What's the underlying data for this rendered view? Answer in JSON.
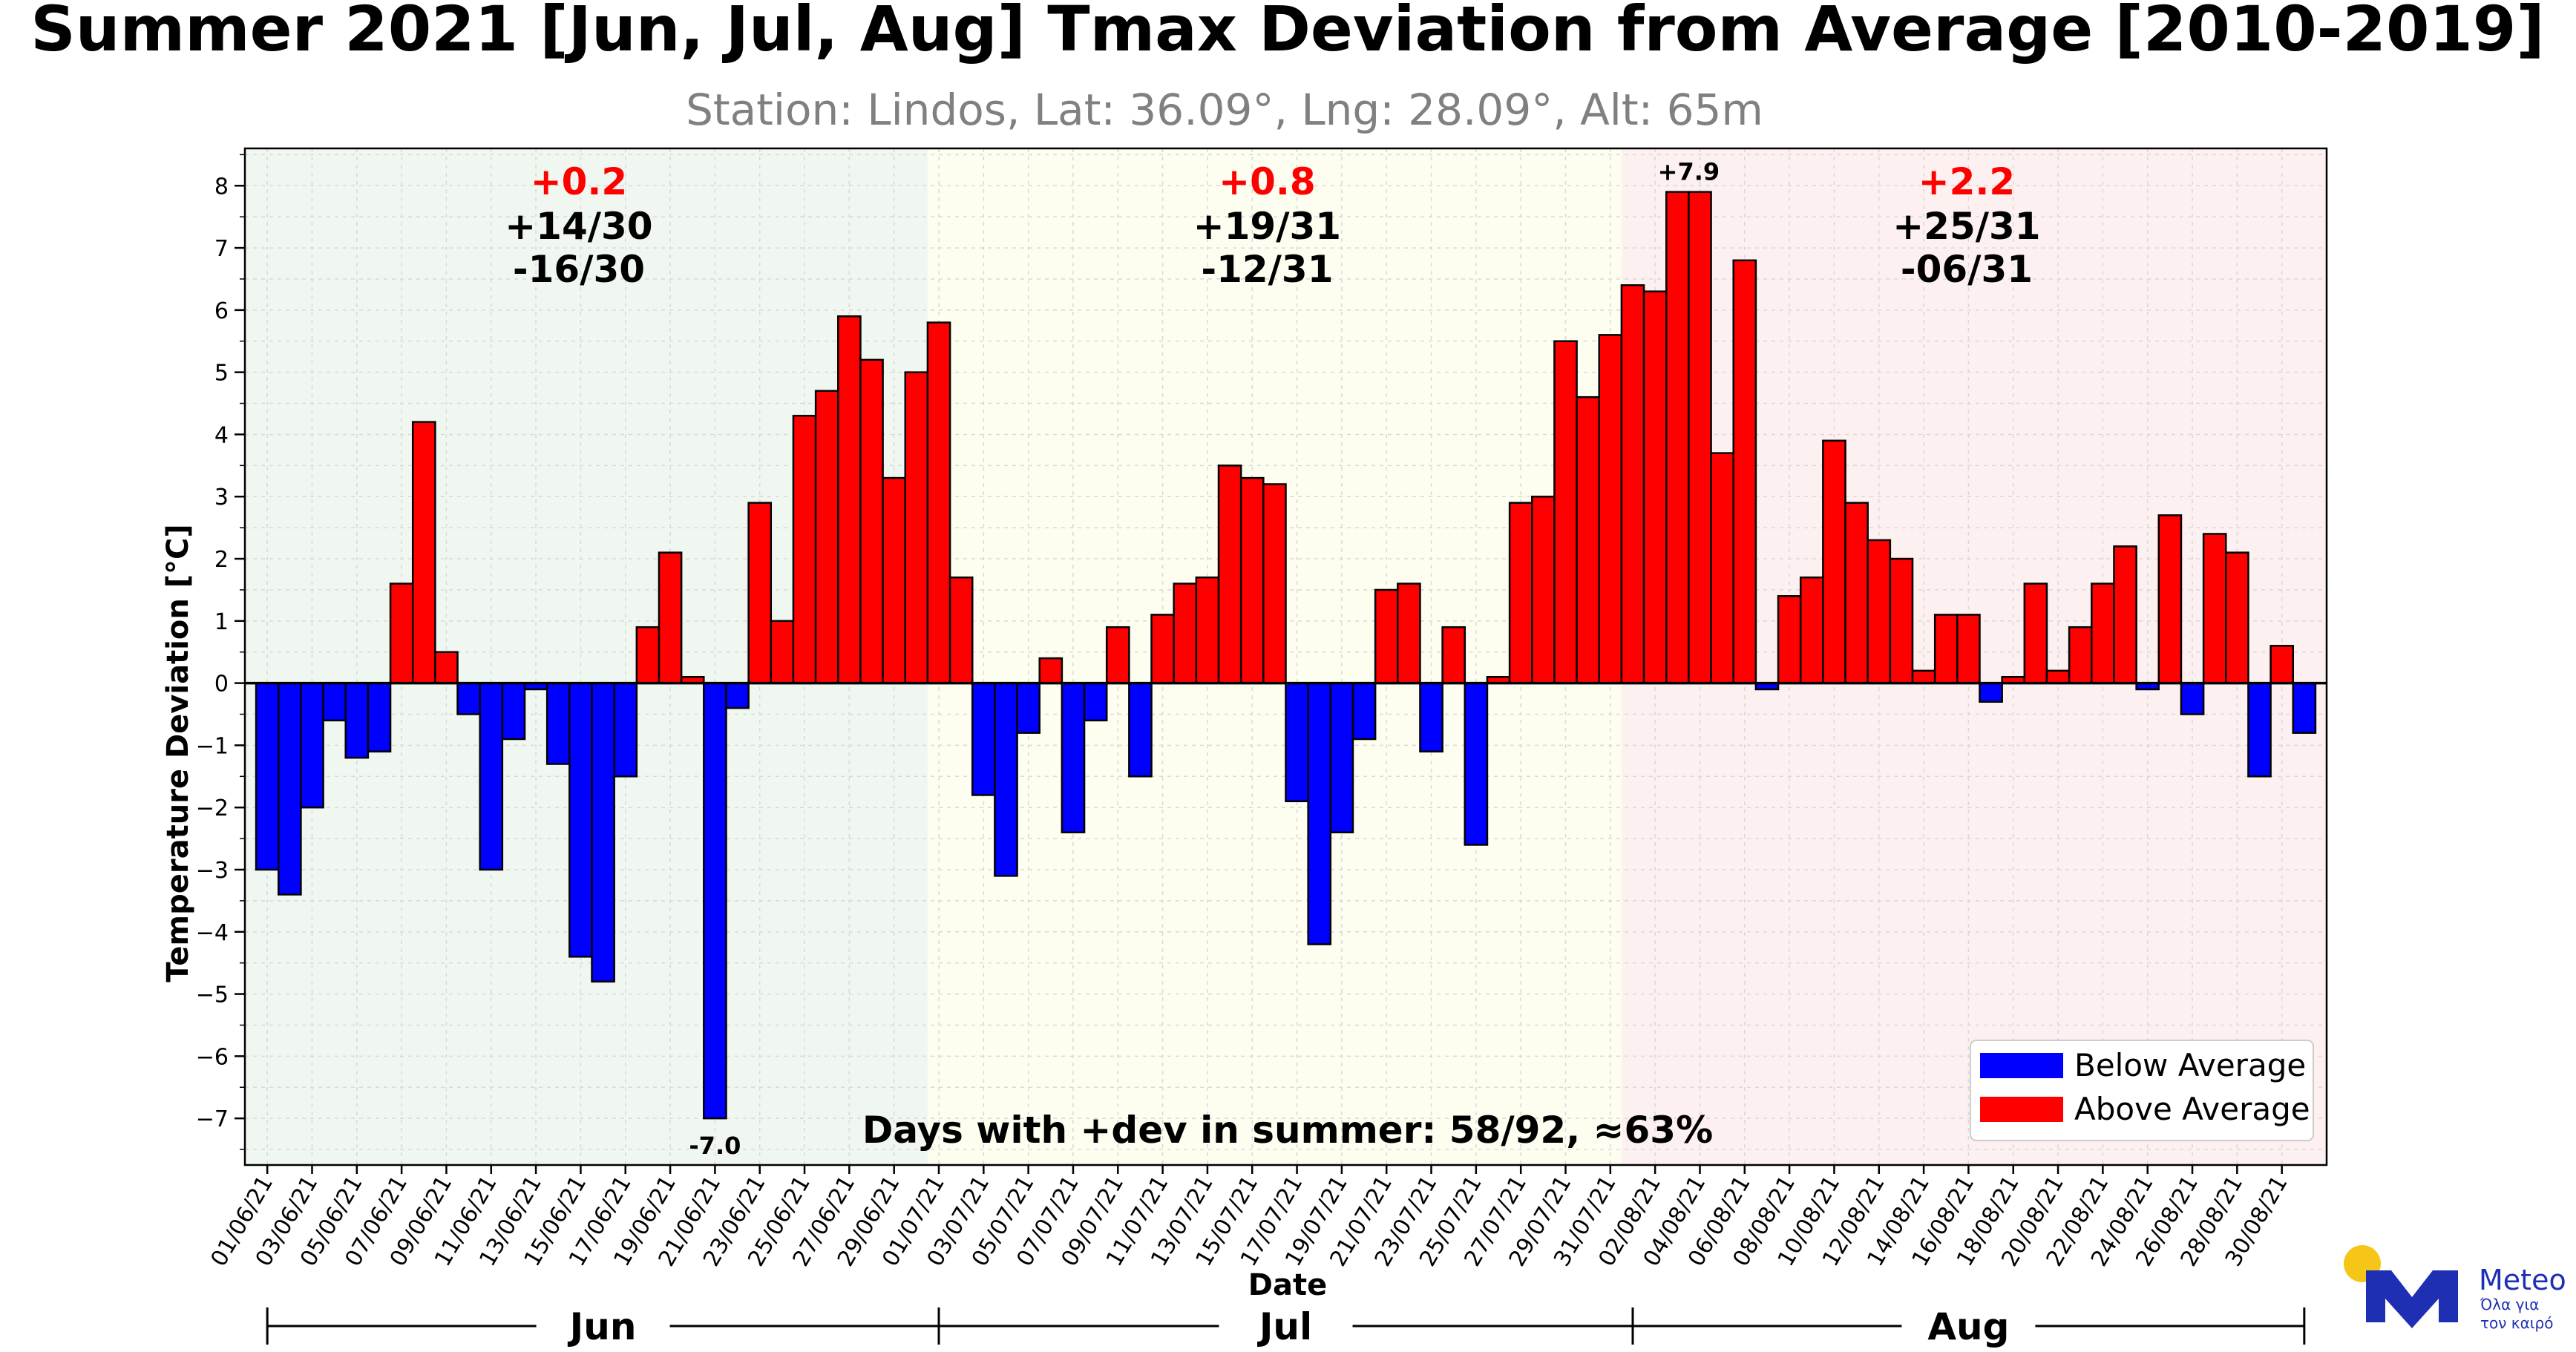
{
  "chart_data": {
    "type": "bar",
    "title": "Summer 2021 [Jun, Jul, Aug] Tmax Deviation from Average [2010-2019]",
    "subtitle": "Station: Lindos, Lat: 36.09°, Lng: 28.09°, Alt: 65m",
    "xlabel": "Date",
    "ylabel": "Temperature Deviation [°C]",
    "ylim": [
      -7.75,
      8.6
    ],
    "yticks": [
      8,
      7,
      6,
      5,
      4,
      3,
      2,
      1,
      0,
      -1,
      -2,
      -3,
      -4,
      -5,
      -6,
      -7
    ],
    "ytick_labels": [
      "8",
      "7",
      "6",
      "5",
      "4",
      "3",
      "2",
      "1",
      "0",
      "−1",
      "−2",
      "−3",
      "−4",
      "−5",
      "−6",
      "−7"
    ],
    "xtick_labels": [
      "01/06/21",
      "03/06/21",
      "05/06/21",
      "07/06/21",
      "09/06/21",
      "11/06/21",
      "13/06/21",
      "15/06/21",
      "17/06/21",
      "19/06/21",
      "21/06/21",
      "23/06/21",
      "25/06/21",
      "27/06/21",
      "29/06/21",
      "01/07/21",
      "03/07/21",
      "05/07/21",
      "07/07/21",
      "09/07/21",
      "11/07/21",
      "13/07/21",
      "15/07/21",
      "17/07/21",
      "19/07/21",
      "21/07/21",
      "23/07/21",
      "25/07/21",
      "27/07/21",
      "29/07/21",
      "31/07/21",
      "02/08/21",
      "04/08/21",
      "06/08/21",
      "08/08/21",
      "10/08/21",
      "12/08/21",
      "14/08/21",
      "16/08/21",
      "18/08/21",
      "20/08/21",
      "22/08/21",
      "24/08/21",
      "26/08/21",
      "28/08/21",
      "30/08/21"
    ],
    "grid": true,
    "colors": {
      "above": "#ff0000",
      "below": "#0000ff",
      "jun_bg": "#f0f7f0",
      "jul_bg": "#fdfdf0",
      "aug_bg": "#fdf0f0"
    },
    "values": [
      -3.0,
      -3.4,
      -2.0,
      -0.6,
      -1.2,
      -1.1,
      1.6,
      4.2,
      0.5,
      -0.5,
      -3.0,
      -0.9,
      -0.1,
      -1.3,
      -4.4,
      -4.8,
      -1.5,
      0.9,
      2.1,
      0.1,
      -7.0,
      -0.4,
      2.9,
      1.0,
      4.3,
      4.7,
      5.9,
      5.2,
      3.3,
      5.0,
      5.8,
      1.7,
      -1.8,
      -3.1,
      -0.8,
      0.4,
      -2.4,
      -0.6,
      0.9,
      -1.5,
      1.1,
      1.6,
      1.7,
      3.5,
      3.3,
      3.2,
      -1.9,
      -4.2,
      -2.4,
      -0.9,
      1.5,
      1.6,
      -1.1,
      0.9,
      -2.6,
      0.1,
      2.9,
      3.0,
      5.5,
      4.6,
      5.6,
      6.4,
      6.3,
      7.9,
      7.9,
      3.7,
      6.8,
      -0.1,
      1.4,
      1.7,
      3.9,
      2.9,
      2.3,
      2.0,
      0.2,
      1.1,
      1.1,
      -0.3,
      0.1,
      1.6,
      0.2,
      0.9,
      1.6,
      2.2,
      -0.1,
      2.7,
      -0.5,
      2.4,
      2.1,
      -1.5,
      0.6,
      -0.8
    ],
    "months": [
      {
        "name": "Jun",
        "mean": "+0.2",
        "pos": "+14/30",
        "neg": "-16/30",
        "days": 30
      },
      {
        "name": "Jul",
        "mean": "+0.8",
        "pos": "+19/31",
        "neg": "-12/31",
        "days": 31
      },
      {
        "name": "Aug",
        "mean": "+2.2",
        "pos": "+25/31",
        "neg": "-06/31",
        "days": 31
      }
    ],
    "annotations": {
      "max_label": "+7.9",
      "max_index": 63,
      "min_label": "-7.0",
      "min_index": 20
    },
    "summary": "Days with +dev in summer: 58/92, ≈63%",
    "legend": {
      "position": "lower-right",
      "items": [
        {
          "label": "Below Average",
          "color": "#0000ff"
        },
        {
          "label": "Above Average",
          "color": "#ff0000"
        }
      ]
    }
  },
  "logo": {
    "name": "Meteo",
    "tagline_1": "Όλα για",
    "tagline_2": "τον καιρό"
  }
}
